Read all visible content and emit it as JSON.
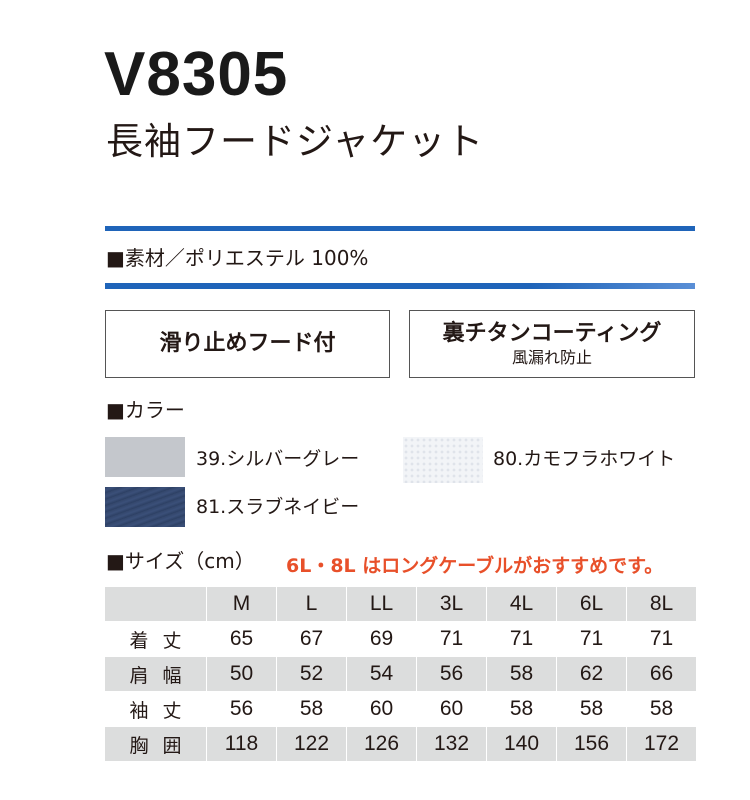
{
  "product": {
    "model": "V8305",
    "name": "長袖フードジャケット"
  },
  "material": "■素材／ポリエステル 100%",
  "colors": {
    "accent_blue": "#1f64b9",
    "note_orange": "#e8502a",
    "table_shade": "#dcdddd"
  },
  "features": [
    {
      "main": "滑り止めフード付",
      "sub": ""
    },
    {
      "main": "裏チタンコーティング",
      "sub": "風漏れ防止"
    }
  ],
  "color_section": {
    "title": "■カラー",
    "items": [
      {
        "label": "39.シルバーグレー",
        "swatch": "#c4c7cc"
      },
      {
        "label": "80.カモフラホワイト",
        "swatch": "#f2f4f7"
      },
      {
        "label": "81.スラブネイビー",
        "swatch": "#33466b"
      }
    ]
  },
  "size_section": {
    "title": "■サイズ（cm）",
    "note": "6L・8L はロングケーブルがおすすめです。",
    "headers": [
      "",
      "M",
      "L",
      "LL",
      "3L",
      "4L",
      "6L",
      "8L"
    ],
    "rows": [
      {
        "label": "着丈",
        "values": [
          "65",
          "67",
          "69",
          "71",
          "71",
          "71",
          "71"
        ]
      },
      {
        "label": "肩幅",
        "values": [
          "50",
          "52",
          "54",
          "56",
          "58",
          "62",
          "66"
        ]
      },
      {
        "label": "袖丈",
        "values": [
          "56",
          "58",
          "60",
          "60",
          "58",
          "58",
          "58"
        ]
      },
      {
        "label": "胸囲",
        "values": [
          "118",
          "122",
          "126",
          "132",
          "140",
          "156",
          "172"
        ]
      }
    ]
  }
}
